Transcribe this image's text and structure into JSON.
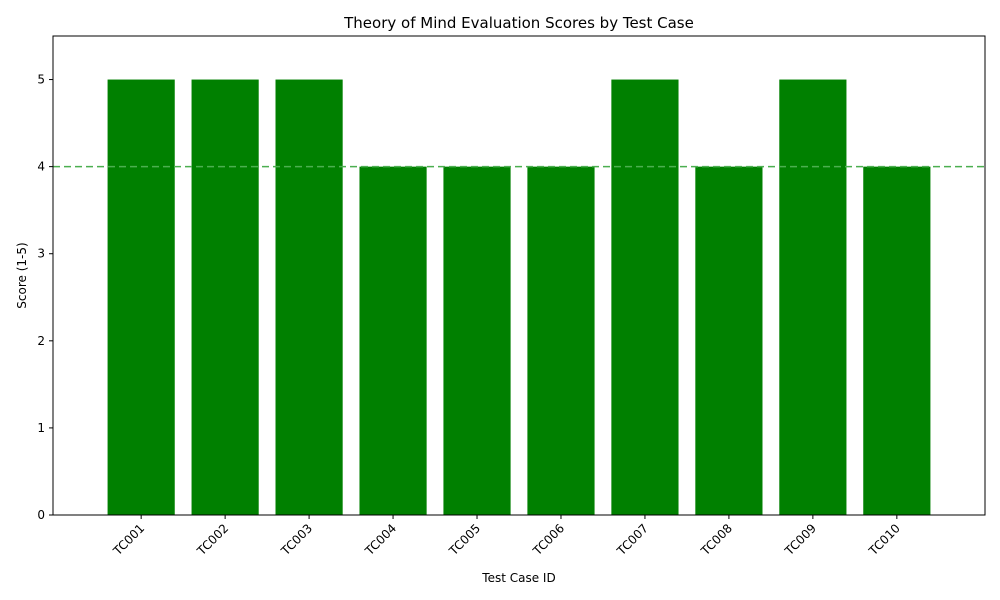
{
  "chart_data": {
    "type": "bar",
    "title": "Theory of Mind Evaluation Scores by Test Case",
    "xlabel": "Test Case ID",
    "ylabel": "Score (1-5)",
    "categories": [
      "TC001",
      "TC002",
      "TC003",
      "TC004",
      "TC005",
      "TC006",
      "TC007",
      "TC008",
      "TC009",
      "TC010"
    ],
    "values": [
      5,
      5,
      5,
      4,
      4,
      4,
      5,
      4,
      5,
      4
    ],
    "ylim": [
      0,
      5.5
    ],
    "yticks": [
      "0",
      "1",
      "2",
      "3",
      "4",
      "5"
    ],
    "reference_line": {
      "value": 4,
      "style": "dashed"
    },
    "grid": false,
    "bar_color": "#008000",
    "reference_line_color": "#4caf50"
  }
}
